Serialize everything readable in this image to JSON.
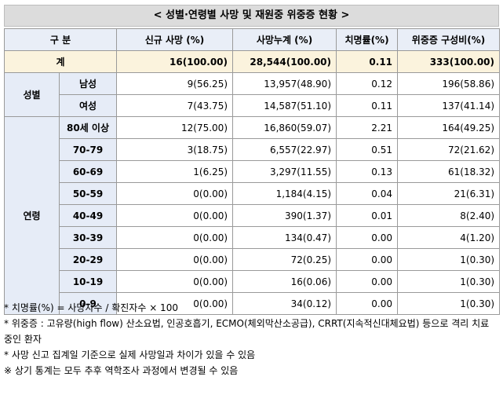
{
  "title": "< 성별·연령별 사망 및 재원중 위중증 현황 >",
  "headers": [
    "구 분",
    "신규 사망     (%)",
    "사망누계     (%)",
    "치명률(%)",
    "위중증   구성비(%)"
  ],
  "total": {
    "label": "계",
    "new": "16(100.00)",
    "cum": "28,544(100.00)",
    "rate": "0.11",
    "severe": "333(100.00)"
  },
  "groups": [
    {
      "name": "성별",
      "rows": [
        {
          "label": "남성",
          "new": "9(56.25)",
          "cum": "13,957(48.90)",
          "rate": "0.12",
          "severe": "196(58.86)"
        },
        {
          "label": "여성",
          "new": "7(43.75)",
          "cum": "14,587(51.10)",
          "rate": "0.11",
          "severe": "137(41.14)"
        }
      ]
    },
    {
      "name": "연령",
      "rows": [
        {
          "label": "80세 이상",
          "new": "12(75.00)",
          "cum": "16,860(59.07)",
          "rate": "2.21",
          "severe": "164(49.25)"
        },
        {
          "label": "70-79",
          "new": "3(18.75)",
          "cum": "6,557(22.97)",
          "rate": "0.51",
          "severe": "72(21.62)"
        },
        {
          "label": "60-69",
          "new": "1(6.25)",
          "cum": "3,297(11.55)",
          "rate": "0.13",
          "severe": "61(18.32)"
        },
        {
          "label": "50-59",
          "new": "0(0.00)",
          "cum": "1,184(4.15)",
          "rate": "0.04",
          "severe": "21(6.31)"
        },
        {
          "label": "40-49",
          "new": "0(0.00)",
          "cum": "390(1.37)",
          "rate": "0.01",
          "severe": "8(2.40)"
        },
        {
          "label": "30-39",
          "new": "0(0.00)",
          "cum": "134(0.47)",
          "rate": "0.00",
          "severe": "4(1.20)"
        },
        {
          "label": "20-29",
          "new": "0(0.00)",
          "cum": "72(0.25)",
          "rate": "0.00",
          "severe": "1(0.30)"
        },
        {
          "label": "10-19",
          "new": "0(0.00)",
          "cum": "16(0.06)",
          "rate": "0.00",
          "severe": "1(0.30)"
        },
        {
          "label": "0-9",
          "new": "0(0.00)",
          "cum": "34(0.12)",
          "rate": "0.00",
          "severe": "1(0.30)"
        }
      ]
    }
  ],
  "notes": [
    "* 치명률(%) = 사망자수 / 확진자수 × 100",
    "* 위중증 : 고유량(high flow) 산소요법, 인공호흡기, ECMO(체외막산소공급), CRRT(지속적신대체요법) 등으로 격리 치료 중인 환자",
    "* 사망 신고 집계일 기준으로 실제 사망일과 차이가 있을 수 있음",
    "※ 상기 통계는 모두 추후 역학조사 과정에서 변경될 수 있음"
  ]
}
